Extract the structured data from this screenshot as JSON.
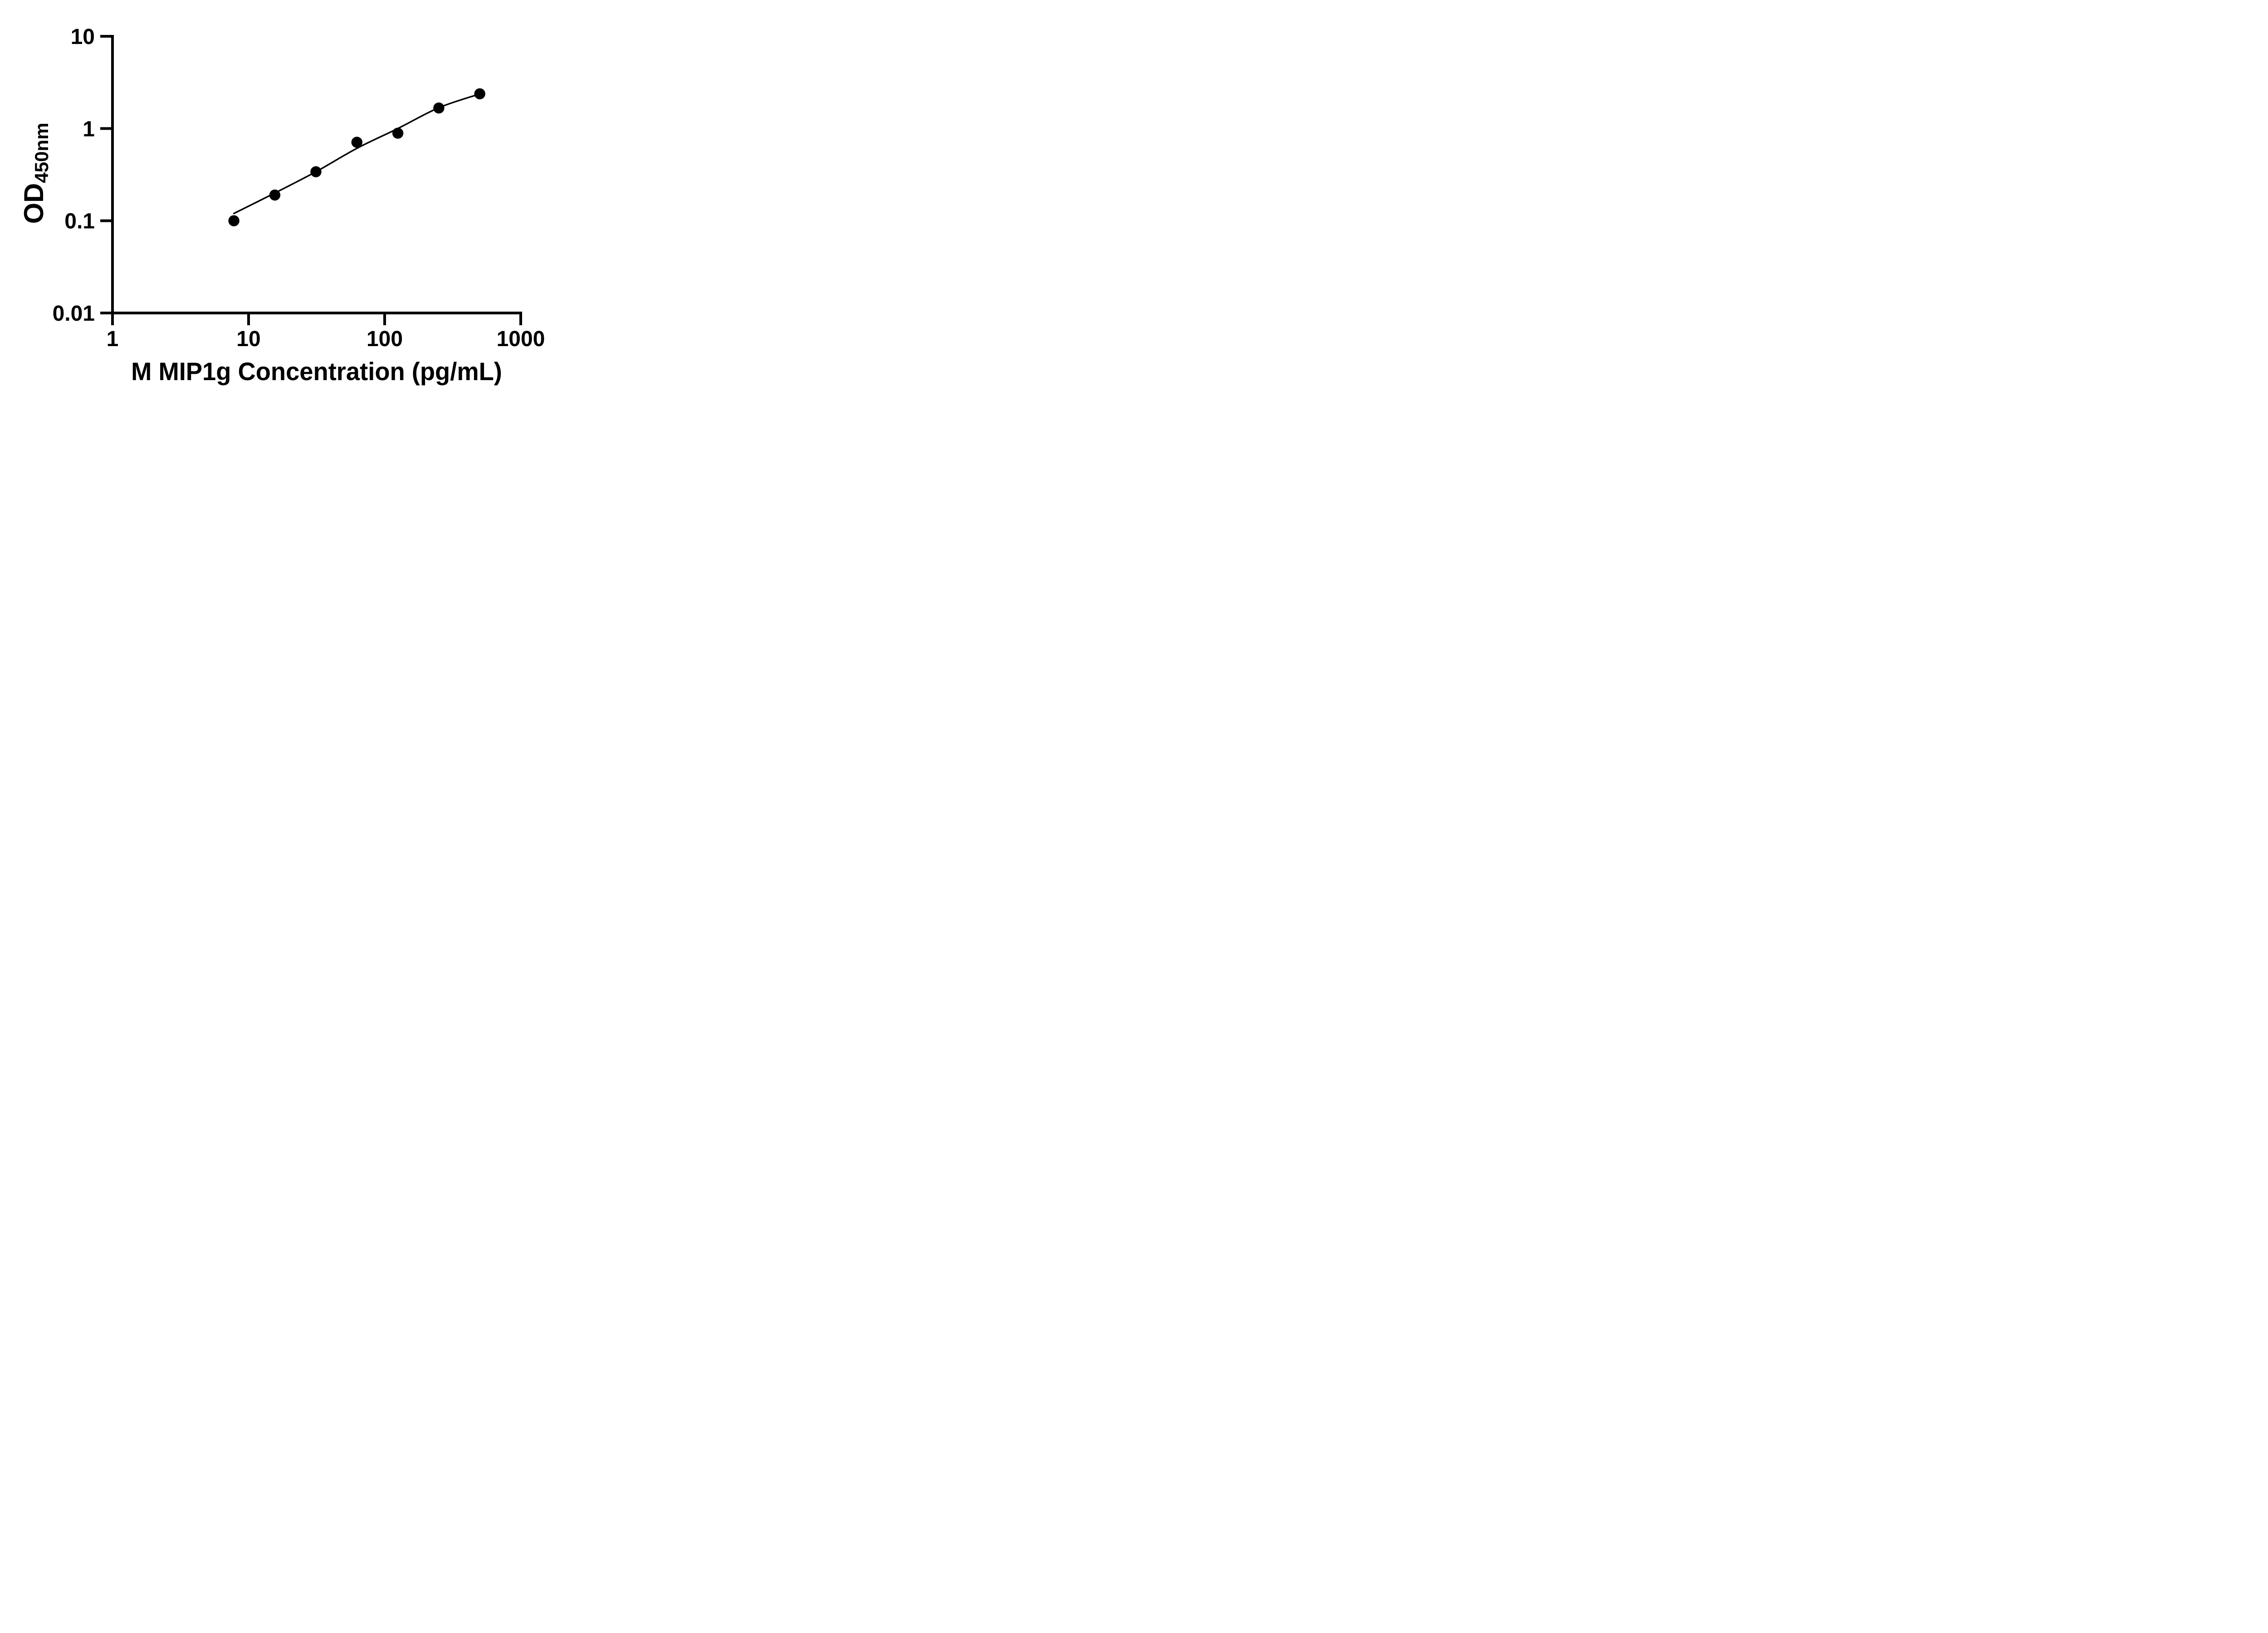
{
  "figure": {
    "background": "#ffffff",
    "ink": "#000000"
  },
  "chart_data": {
    "type": "scatter",
    "title": "",
    "xlabel": "M MIP1g Concentration (pg/mL)",
    "ylabel": "OD450nm",
    "ylabel_main": "OD",
    "ylabel_sub": "450nm",
    "x_scale": "log",
    "y_scale": "log",
    "xlim": [
      1,
      1000
    ],
    "ylim": [
      0.01,
      10
    ],
    "x_ticks": [
      1,
      10,
      100,
      1000
    ],
    "x_tick_labels": [
      "1",
      "10",
      "100",
      "1000"
    ],
    "y_ticks": [
      10,
      1,
      0.1,
      0.01
    ],
    "y_tick_labels": [
      "10",
      "1",
      "0.1",
      "0.01"
    ],
    "grid": false,
    "legend": false,
    "series": [
      {
        "name": "standard-points",
        "marker": "filled-circle",
        "color": "#000000",
        "x": [
          7.8,
          15.6,
          31.25,
          62.5,
          125,
          250,
          500
        ],
        "y": [
          0.1,
          0.19,
          0.34,
          0.71,
          0.89,
          1.67,
          2.38
        ]
      }
    ],
    "fit_curve": {
      "name": "fitted-standard-curve",
      "color": "#000000",
      "x": [
        7.8,
        15.6,
        31.25,
        62.5,
        125,
        250,
        500
      ],
      "y": [
        0.12,
        0.2,
        0.34,
        0.61,
        1.0,
        1.68,
        2.37
      ]
    }
  }
}
